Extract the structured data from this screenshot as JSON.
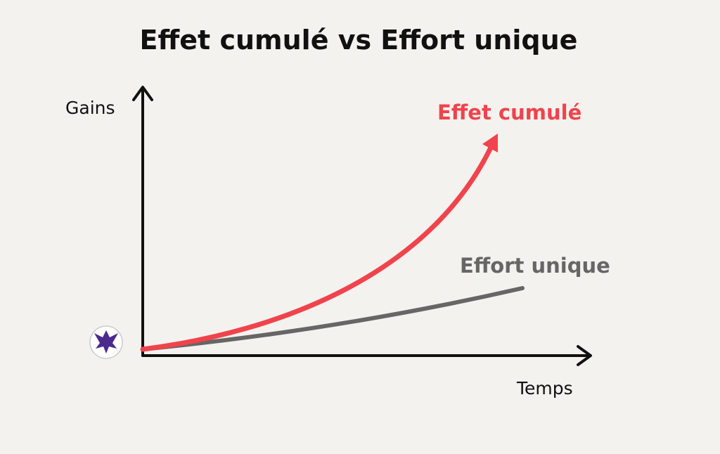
{
  "title": "Effet cumulé vs Effort unique",
  "axes": {
    "y_label": "Gains",
    "x_label": "Temps"
  },
  "curves": [
    {
      "label": "Effet cumulé"
    },
    {
      "label": "Effort unique"
    }
  ]
}
